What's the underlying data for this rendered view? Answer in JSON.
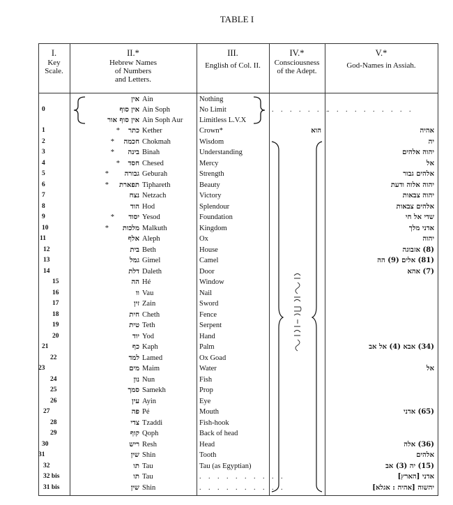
{
  "title": "TABLE I",
  "headers": [
    {
      "num": "I.",
      "label": "Key\nScale."
    },
    {
      "num": "II.*",
      "label": "Hebrew Names\nof Numbers\nand Letters."
    },
    {
      "num": "III.",
      "label": "English of Col. II."
    },
    {
      "num": "IV.*",
      "label": "Consciousness\nof the Adept."
    },
    {
      "num": "V.*",
      "label": "God-Names in Assiah."
    }
  ],
  "zero_row": {
    "key": "0",
    "lines": [
      {
        "hebrew": "אין",
        "name": "Ain",
        "english": "Nothing"
      },
      {
        "hebrew": "אין סוף",
        "name": "Ain Soph",
        "english": "No Limit"
      },
      {
        "hebrew": "אין סוף אור",
        "name": "Ain Soph Aur",
        "english": "Limitless L.V.X"
      }
    ],
    "col4": ". . . . . . .",
    "col5": ". . . . . . . . . ."
  },
  "rows": [
    {
      "key": "1",
      "marker": "*",
      "hebrew": "כתר",
      "name": "Kether",
      "english": "Crown*",
      "col4": "הוא",
      "god": "אהיה"
    },
    {
      "key": "2",
      "marker": "*",
      "hebrew": "חכמה",
      "name": "Chokmah",
      "english": "Wisdom",
      "god": "יה"
    },
    {
      "key": "3",
      "marker": "*",
      "hebrew": "בינה",
      "name": "Binah",
      "english": "Understanding",
      "god": "יהוה אלהים"
    },
    {
      "key": "4",
      "marker": "*",
      "hebrew": "חסד",
      "name": "Chesed",
      "english": "Mercy",
      "god": "אל"
    },
    {
      "key": "5",
      "marker": "*",
      "hebrew": "גבורה",
      "name": "Geburah",
      "english": "Strength",
      "god": "אלהים גבור"
    },
    {
      "key": "6",
      "marker": "*",
      "hebrew": "תפארת",
      "name": "Tiphareth",
      "english": "Beauty",
      "god": "יהוה אלוה ודעת"
    },
    {
      "key": "7",
      "hebrew": "נצח",
      "name": "Netzach",
      "english": "Victory",
      "god": "יהוה צבאות"
    },
    {
      "key": "8",
      "hebrew": "הוד",
      "name": "Hod",
      "english": "Splendour",
      "god": "אלהים צבאות"
    },
    {
      "key": "9",
      "marker": "*",
      "hebrew": "יסוד",
      "name": "Yesod",
      "english": "Foundation",
      "god": "שדי אל חי"
    },
    {
      "key": "10",
      "marker": "*",
      "hebrew": "מלכות",
      "name": "Malkuth",
      "english": "Kingdom",
      "god": "אדני מלך"
    },
    {
      "key": "11",
      "hebrew": "אלף",
      "name": "Aleph",
      "english": "Ox",
      "god": "יהוה"
    },
    {
      "key": "12",
      "hebrew": "בית",
      "name": "Beth",
      "english": "House",
      "god": "(8) אזבוגה"
    },
    {
      "key": "13",
      "hebrew": "גמל",
      "name": "Gimel",
      "english": "Camel",
      "god": "(81) אלים (9) הה"
    },
    {
      "key": "14",
      "hebrew": "דלת",
      "name": "Daleth",
      "english": "Door",
      "god": "(7) אהא"
    },
    {
      "key": "15",
      "hebrew": "הה",
      "name": "Hé",
      "english": "Window"
    },
    {
      "key": "16",
      "hebrew": "וו",
      "name": "Vau",
      "english": "Nail"
    },
    {
      "key": "17",
      "hebrew": "זין",
      "name": "Zain",
      "english": "Sword"
    },
    {
      "key": "18",
      "hebrew": "חית",
      "name": "Cheth",
      "english": "Fence"
    },
    {
      "key": "19",
      "hebrew": "טית",
      "name": "Teth",
      "english": "Serpent"
    },
    {
      "key": "20",
      "hebrew": "יוד",
      "name": "Yod",
      "english": "Hand"
    },
    {
      "key": "21",
      "hebrew": "כף",
      "name": "Kaph",
      "english": "Palm",
      "god": "(34) אבא (4) אל אב"
    },
    {
      "key": "22",
      "hebrew": "למד",
      "name": "Lamed",
      "english": "Ox Goad"
    },
    {
      "key": "23",
      "hebrew": "מים",
      "name": "Maim",
      "english": "Water",
      "god": "אל"
    },
    {
      "key": "24",
      "hebrew": "נון",
      "name": "Nun",
      "english": "Fish"
    },
    {
      "key": "25",
      "hebrew": "סמך",
      "name": "Samekh",
      "english": "Prop"
    },
    {
      "key": "26",
      "hebrew": "עין",
      "name": "Ayin",
      "english": "Eye"
    },
    {
      "key": "27",
      "hebrew": "פה",
      "name": "Pé",
      "english": "Mouth",
      "god": "(65) אדני"
    },
    {
      "key": "28",
      "hebrew": "צדי",
      "name": "Tzaddi",
      "english": "Fish-hook"
    },
    {
      "key": "29",
      "hebrew": "קוף",
      "name": "Qoph",
      "english": "Back of head"
    },
    {
      "key": "30",
      "hebrew": "ריש",
      "name": "Resh",
      "english": "Head",
      "god": "(36) אלה"
    },
    {
      "key": "31",
      "hebrew": "שין",
      "name": "Shin",
      "english": "Tooth",
      "god": "אלהים"
    },
    {
      "key": "32",
      "hebrew": "תו",
      "name": "Tau",
      "english": "Tau (as Egyptian)",
      "god": "(15) יה (3) אב"
    },
    {
      "key": "32 bis",
      "hebrew": "תו",
      "name": "Tau",
      "english": ". . . . . . . . . .",
      "god": "אדני [הארץ]"
    },
    {
      "key": "31 bis",
      "hebrew": "שין",
      "name": "Shin",
      "english": ". . . . . . . . . .",
      "god": "יהשוה [אהיה : אגלא]"
    }
  ]
}
